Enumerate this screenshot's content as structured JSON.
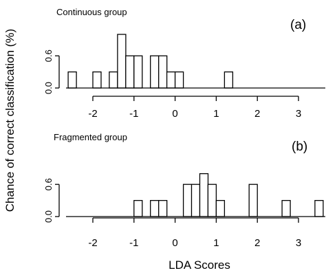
{
  "ylabel": "Chance of correct classification (%)",
  "xlabel": "LDA Scores",
  "chart_data": [
    {
      "type": "bar",
      "title": "Continuous group",
      "panel": "(a)",
      "bin_width": 0.2,
      "bin_starts": [
        -2.6,
        -2.0,
        -1.6,
        -1.4,
        -1.2,
        -1.0,
        -0.6,
        -0.4,
        -0.2,
        0.0,
        1.2
      ],
      "values": [
        0.3,
        0.3,
        0.3,
        1.0,
        0.6,
        0.6,
        0.6,
        0.6,
        0.3,
        0.3,
        0.3
      ],
      "xlim": [
        -2.6,
        3.5
      ],
      "ylim": [
        0,
        1.0
      ],
      "xticks": [
        -2,
        -1,
        0,
        1,
        2,
        3
      ],
      "yticks": [
        0.0,
        0.6
      ],
      "grid": false
    },
    {
      "type": "bar",
      "title": "Fragmented group",
      "panel": "(b)",
      "bin_width": 0.2,
      "bin_starts": [
        -1.0,
        -0.6,
        -0.4,
        0.2,
        0.4,
        0.6,
        0.8,
        1.0,
        1.8,
        2.6,
        3.4
      ],
      "values": [
        0.3,
        0.3,
        0.3,
        0.6,
        0.6,
        0.8,
        0.6,
        0.3,
        0.6,
        0.3,
        0.3
      ],
      "xlim": [
        -2.6,
        3.5
      ],
      "ylim": [
        0,
        1.0
      ],
      "xticks": [
        -2,
        -1,
        0,
        1,
        2,
        3
      ],
      "yticks": [
        0.0,
        0.6
      ],
      "grid": false
    }
  ]
}
